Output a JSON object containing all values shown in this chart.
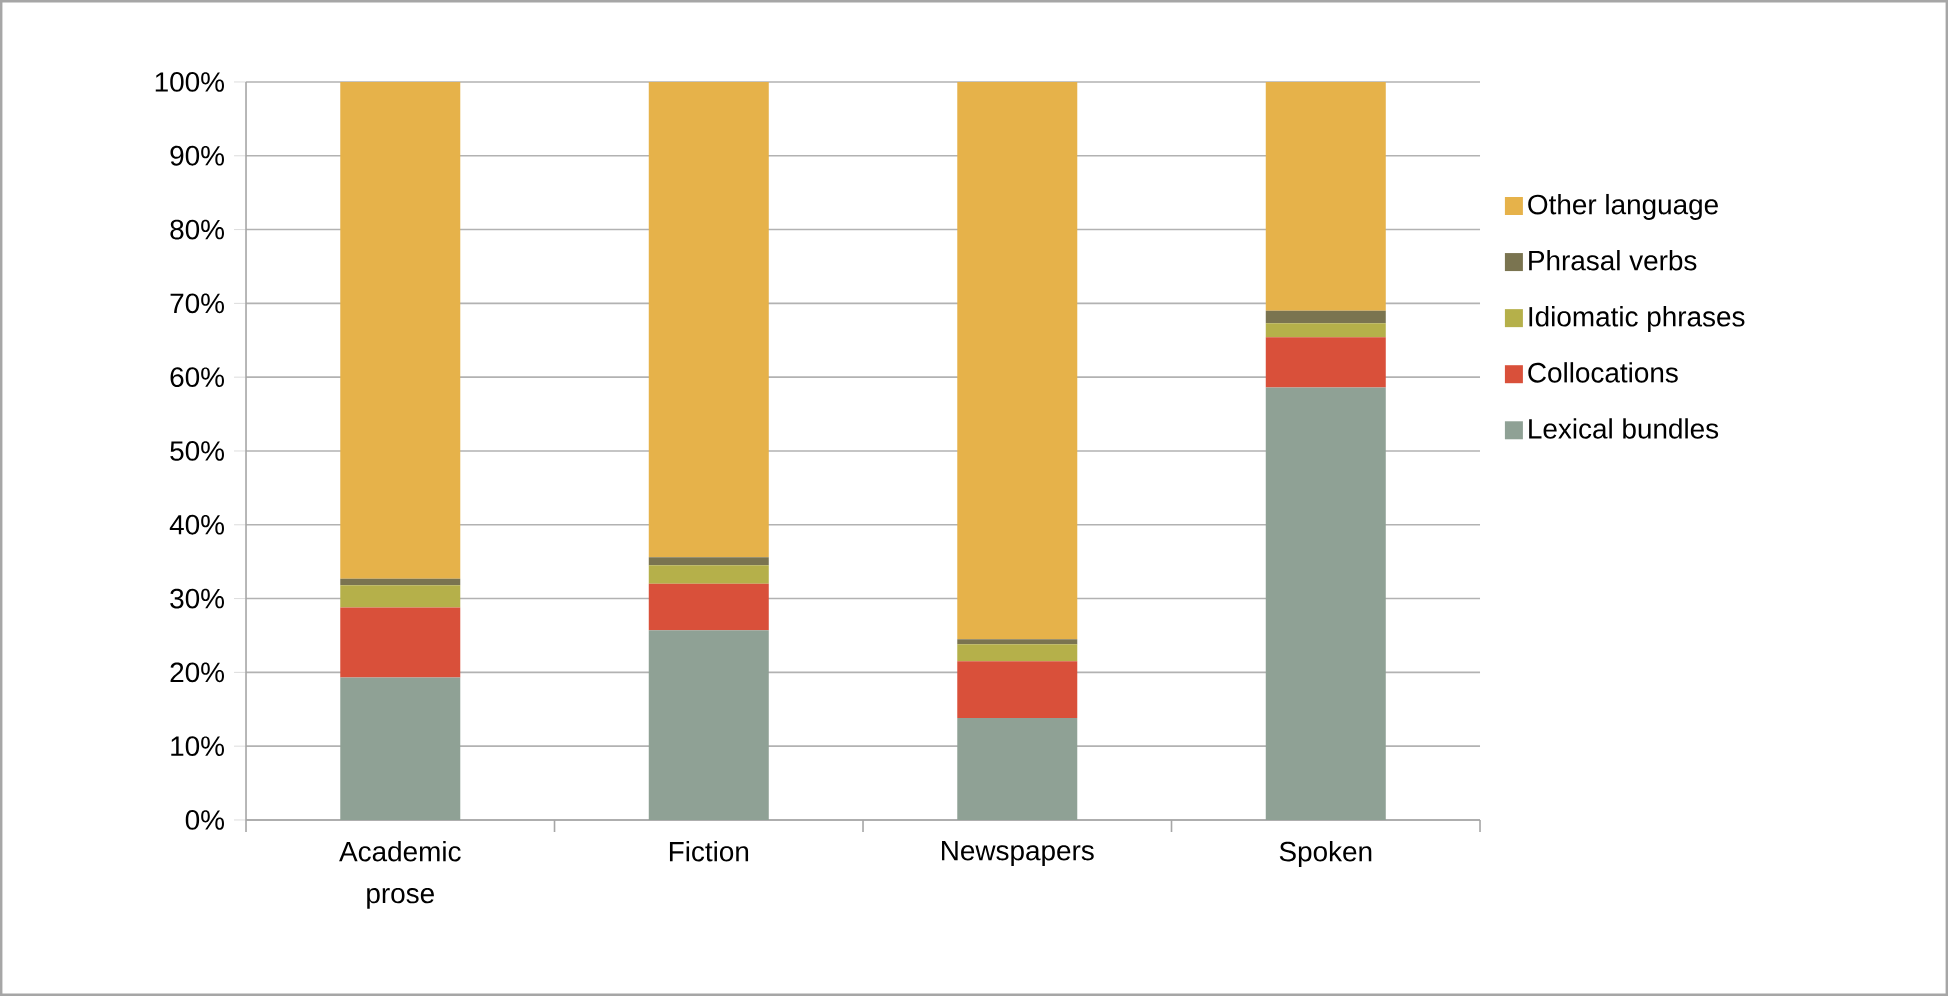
{
  "chart_data": {
    "type": "bar",
    "stacked": true,
    "categories": [
      "Academic prose",
      "Fiction",
      "Newspapers",
      "Spoken"
    ],
    "series": [
      {
        "name": "Lexical bundles",
        "color": "#8fa195",
        "values": [
          19.3,
          25.7,
          13.8,
          58.6
        ]
      },
      {
        "name": "Collocations",
        "color": "#d9503a",
        "values": [
          9.5,
          6.3,
          7.7,
          6.8
        ]
      },
      {
        "name": "Idiomatic phrases",
        "color": "#b5b04a",
        "values": [
          3.0,
          2.5,
          2.3,
          1.9
        ]
      },
      {
        "name": "Phrasal verbs",
        "color": "#7a7450",
        "values": [
          0.9,
          1.1,
          0.7,
          1.7
        ]
      },
      {
        "name": "Other language",
        "color": "#e6b24a",
        "values": [
          67.3,
          64.4,
          75.5,
          31.0
        ]
      }
    ],
    "ylim": [
      0,
      100
    ],
    "yticks": [
      {
        "value": 0,
        "label": "0%"
      },
      {
        "value": 10,
        "label": "10%"
      },
      {
        "value": 20,
        "label": "20%"
      },
      {
        "value": 30,
        "label": "30%"
      },
      {
        "value": 40,
        "label": "40%"
      },
      {
        "value": 50,
        "label": "50%"
      },
      {
        "value": 60,
        "label": "60%"
      },
      {
        "value": 70,
        "label": "70%"
      },
      {
        "value": 80,
        "label": "80%"
      },
      {
        "value": 90,
        "label": "90%"
      },
      {
        "value": 100,
        "label": "100%"
      }
    ],
    "grid": "y",
    "legend": "right"
  }
}
